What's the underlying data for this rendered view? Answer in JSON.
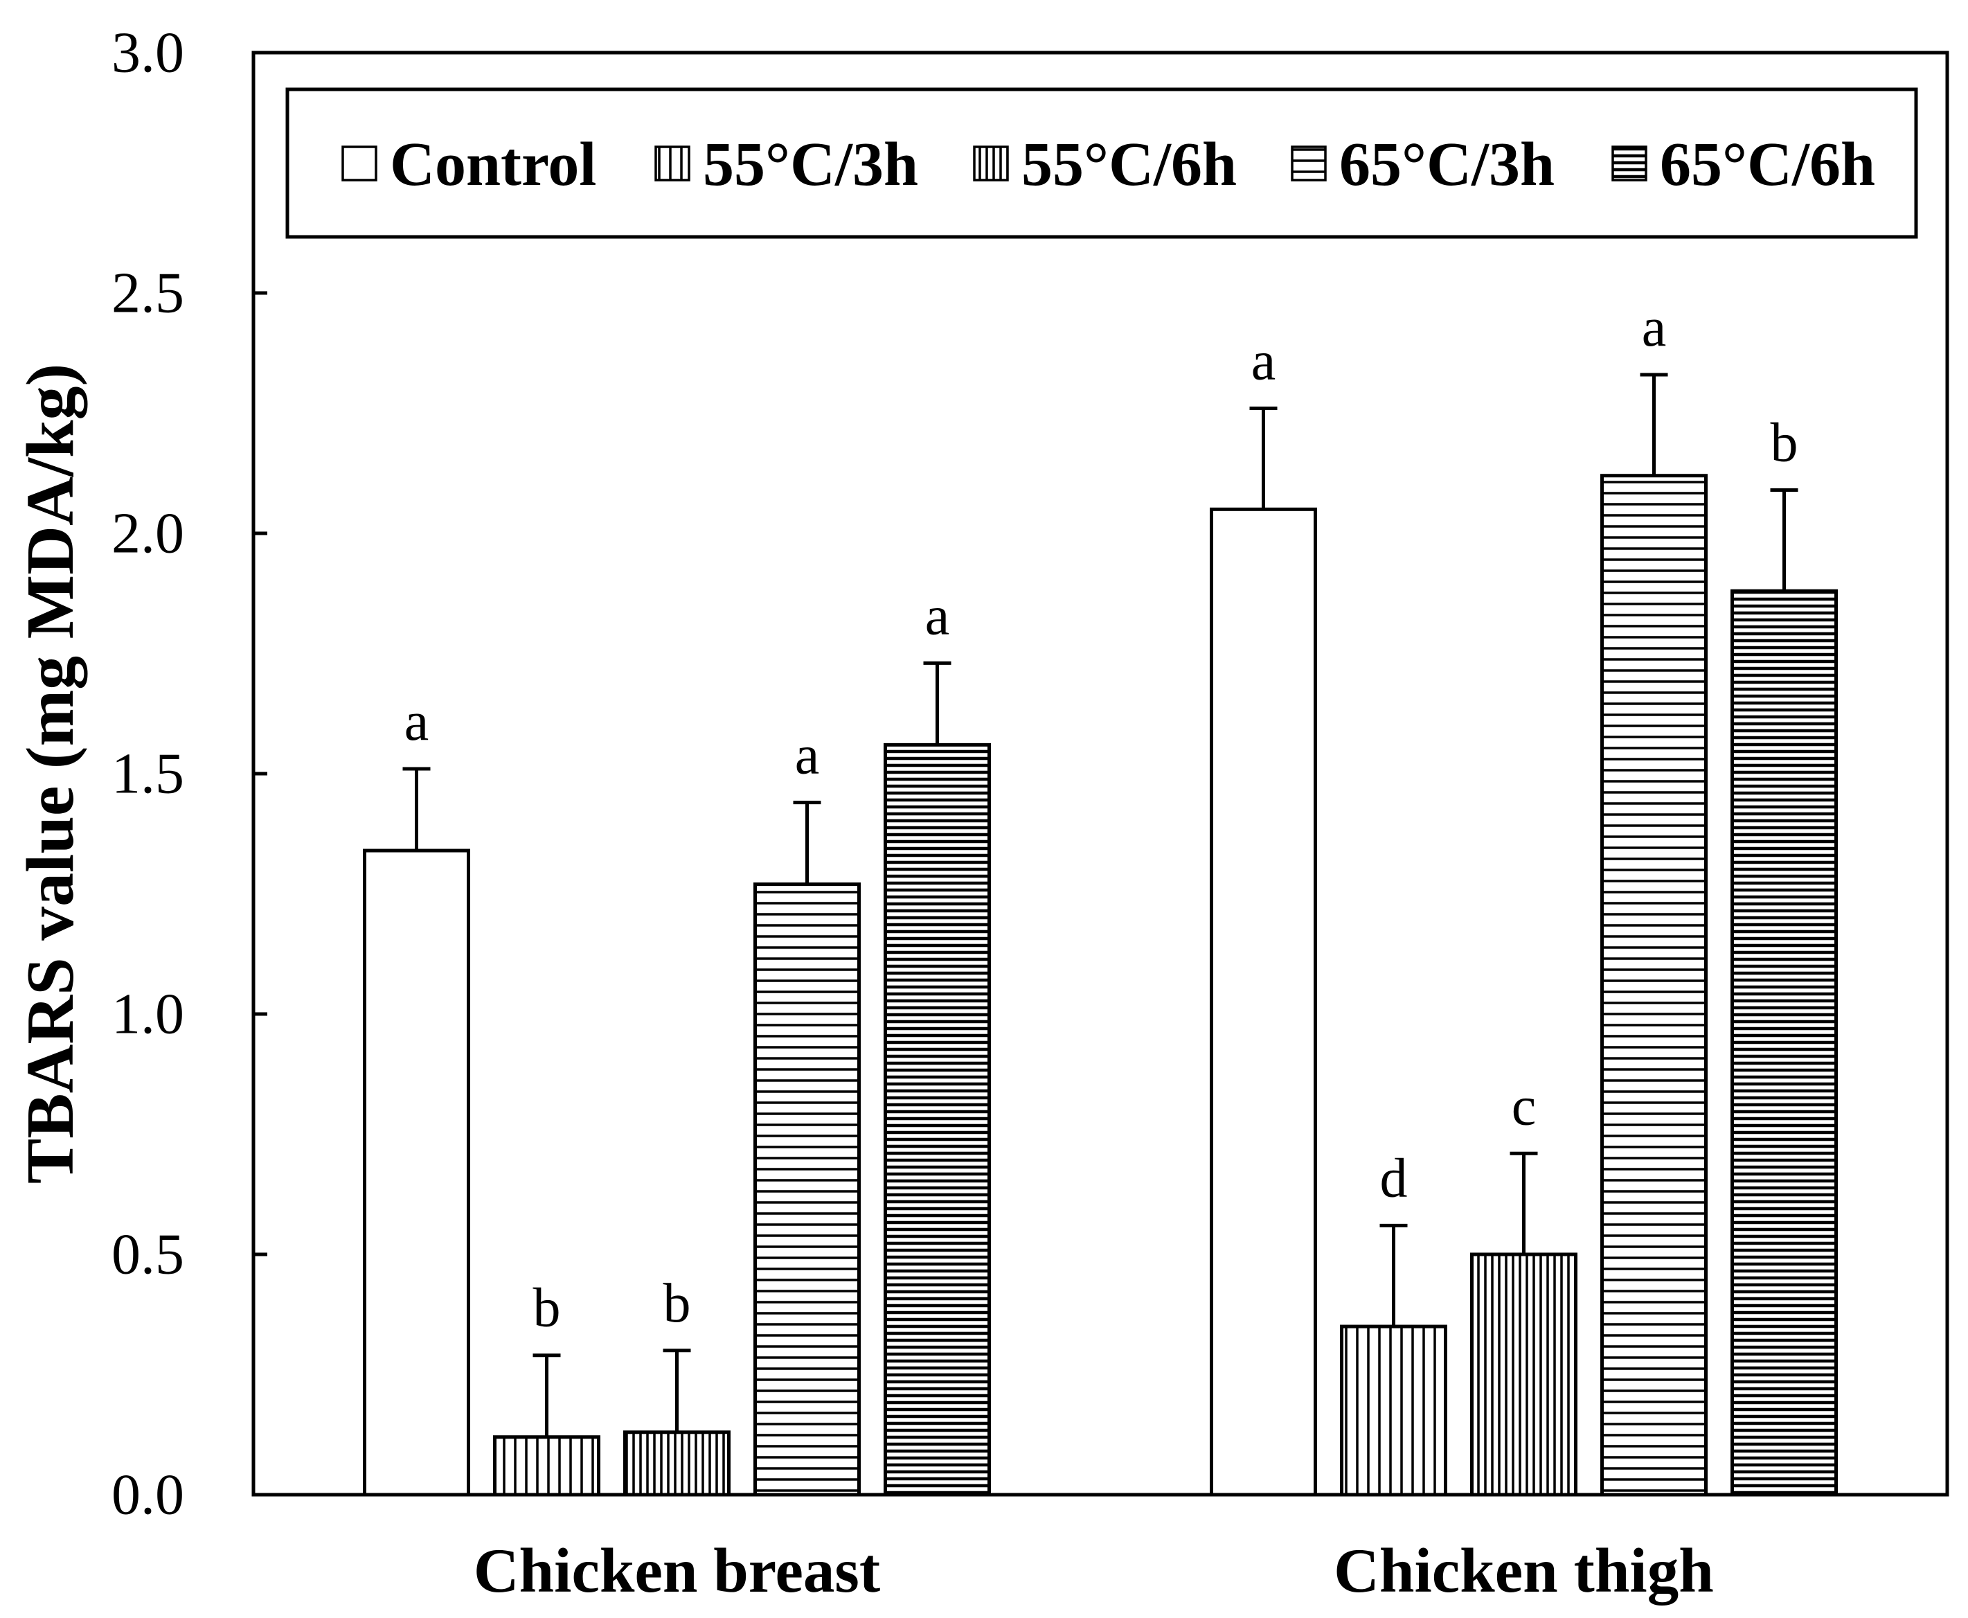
{
  "chart_data": {
    "type": "bar",
    "ylabel": "TBARS value (mg MDA/kg)",
    "categories": [
      "Chicken breast",
      "Chicken thigh"
    ],
    "ylim": [
      0,
      3.0
    ],
    "yticks": [
      0,
      0.5,
      1.0,
      1.5,
      2.0,
      2.5,
      3.0
    ],
    "ytick_labels": [
      "0.0",
      "0.5",
      "1.0",
      "1.5",
      "2.0",
      "2.5",
      "3.0"
    ],
    "grid": false,
    "legend_position": "top",
    "series": [
      {
        "name": "Control",
        "values": [
          1.34,
          2.05
        ],
        "errors": [
          0.17,
          0.21
        ],
        "labels": [
          "a",
          "a"
        ]
      },
      {
        "name": "55°C/3h",
        "values": [
          0.12,
          0.35
        ],
        "errors": [
          0.17,
          0.21
        ],
        "labels": [
          "b",
          "d"
        ]
      },
      {
        "name": "55°C/6h",
        "values": [
          0.13,
          0.5
        ],
        "errors": [
          0.17,
          0.21
        ],
        "labels": [
          "b",
          "c"
        ]
      },
      {
        "name": "65°C/3h",
        "values": [
          1.27,
          2.12
        ],
        "errors": [
          0.17,
          0.21
        ],
        "labels": [
          "a",
          "a"
        ]
      },
      {
        "name": "65°C/6h",
        "values": [
          1.56,
          1.88
        ],
        "errors": [
          0.17,
          0.21
        ],
        "labels": [
          "a",
          "b"
        ]
      }
    ]
  }
}
